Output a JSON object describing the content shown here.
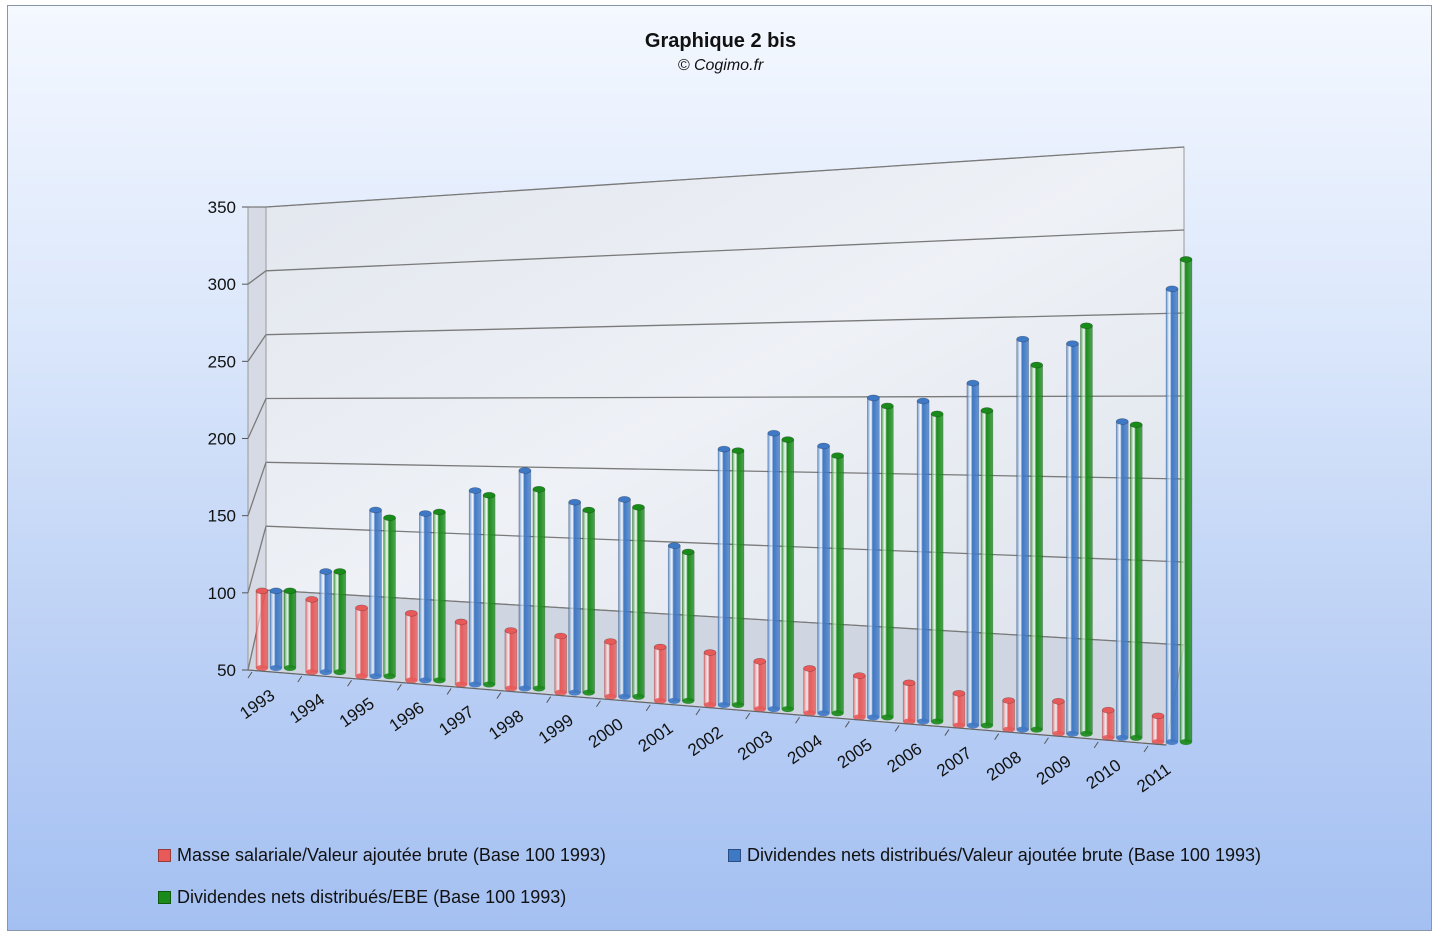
{
  "chart_data": {
    "type": "bar",
    "title": "Graphique 2 bis",
    "subtitle": "© Cogimo.fr",
    "categories": [
      "1993",
      "1994",
      "1995",
      "1996",
      "1997",
      "1998",
      "1999",
      "2000",
      "2001",
      "2002",
      "2003",
      "2004",
      "2005",
      "2006",
      "2007",
      "2008",
      "2009",
      "2010",
      "2011"
    ],
    "series": [
      {
        "name": "Masse salariale/Valeur ajoutée brute (Base 100 1993)",
        "color": "#e85a5a",
        "values": [
          100,
          97,
          94,
          93,
          90,
          87,
          86,
          85,
          84,
          83,
          80,
          78,
          76,
          74,
          70,
          68,
          70,
          67,
          66
        ]
      },
      {
        "name": "Dividendes nets distribués/Valeur ajoutée brute (Base 100 1993)",
        "color": "#3f78c4",
        "values": [
          100,
          115,
          157,
          157,
          174,
          189,
          171,
          175,
          148,
          211,
          223,
          217,
          249,
          249,
          262,
          291,
          290,
          244,
          327
        ]
      },
      {
        "name": "Dividendes nets distribués/EBE (Base 100 1993)",
        "color": "#1a8a1a",
        "values": [
          100,
          115,
          152,
          158,
          171,
          177,
          166,
          170,
          144,
          210,
          219,
          211,
          244,
          241,
          245,
          275,
          301,
          242,
          345
        ]
      }
    ],
    "y_ticks": [
      50,
      100,
      150,
      200,
      250,
      300,
      350
    ],
    "ylim": [
      50,
      350
    ],
    "grid": true,
    "legend_position": "bottom"
  }
}
